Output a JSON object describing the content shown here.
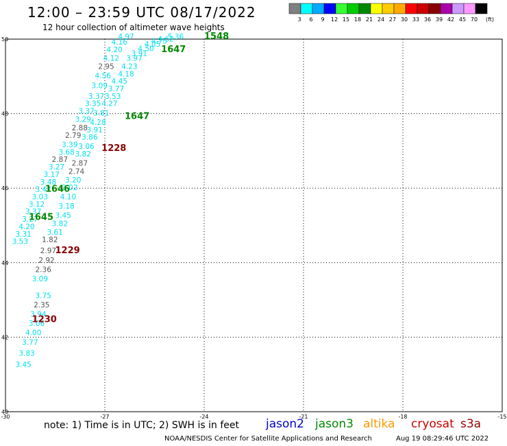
{
  "header": {
    "title": "12:00 – 23:59 UTC 08/17/2022",
    "subtitle": "12 hour collection of altimeter wave heights"
  },
  "colorbar": {
    "colors": [
      "#808080",
      "#00ffff",
      "#00aaff",
      "#0000ff",
      "#33ff33",
      "#00cc00",
      "#008800",
      "#ffff00",
      "#ffcc00",
      "#ffaa00",
      "#ff0000",
      "#cc0000",
      "#880000",
      "#aa00aa",
      "#cc99ff",
      "#ff99ff",
      "#000000"
    ],
    "labels": [
      "3",
      "6",
      "9",
      "12",
      "15",
      "18",
      "21",
      "24",
      "27",
      "30",
      "33",
      "36",
      "39",
      "42",
      "45",
      "70",
      "(ft)"
    ]
  },
  "footer": {
    "note": "note:  1) Time is in UTC;  2) SWH is in feet",
    "credit": "NOAA/NESDIS Center for Satellite Applications and Research",
    "date": "Aug 19 08:29:46 UTC 2022",
    "satellites": [
      {
        "name": "jason2",
        "color": "#0000cc"
      },
      {
        "name": "jason3",
        "color": "#008800"
      },
      {
        "name": "altika",
        "color": "#ff9900"
      },
      {
        "name": "cryosat",
        "color": "#cc0000"
      },
      {
        "name": "s3a",
        "color": "#990000"
      }
    ]
  },
  "chart_data": {
    "type": "scatter",
    "title": "12:00 – 23:59 UTC 08/17/2022",
    "subtitle": "12 hour collection of altimeter wave heights",
    "xlabel": "",
    "ylabel": "",
    "xlim": [
      -30,
      -15
    ],
    "ylim": [
      40,
      50
    ],
    "grid": true,
    "x_ticks": [
      -30,
      -27,
      -24,
      -21,
      -18,
      -15
    ],
    "x_tick_labels": [
      "-30",
      "-27",
      "-24",
      "-21",
      "-18",
      "-15"
    ],
    "y_ticks": [
      40,
      42,
      44,
      46,
      48,
      50
    ],
    "y_tick_labels": [
      "40",
      "42",
      "44",
      "46",
      "48",
      "50"
    ],
    "colors": {
      "cyan": "#00e0ee",
      "gray": "#555555",
      "green": "#008800",
      "darkred": "#880000"
    },
    "points": [
      {
        "x": -29.7,
        "y": 41.2,
        "label": "3.45",
        "color": "cyan"
      },
      {
        "x": -29.6,
        "y": 41.5,
        "label": "3.83",
        "color": "cyan"
      },
      {
        "x": -29.5,
        "y": 41.8,
        "label": "3.77",
        "color": "cyan"
      },
      {
        "x": -29.4,
        "y": 42.05,
        "label": "4.00",
        "color": "cyan"
      },
      {
        "x": -29.3,
        "y": 42.3,
        "label": "3.06",
        "color": "cyan"
      },
      {
        "x": -29.25,
        "y": 42.55,
        "label": "3.94",
        "color": "cyan"
      },
      {
        "x": -29.15,
        "y": 42.8,
        "label": "2.35",
        "color": "gray"
      },
      {
        "x": -29.1,
        "y": 43.05,
        "label": "3.75",
        "color": "cyan"
      },
      {
        "x": -29.2,
        "y": 43.5,
        "label": "3.09",
        "color": "cyan"
      },
      {
        "x": -29.1,
        "y": 43.75,
        "label": "2.36",
        "color": "gray"
      },
      {
        "x": -29.0,
        "y": 44.0,
        "label": "2.92",
        "color": "gray"
      },
      {
        "x": -28.95,
        "y": 44.25,
        "label": "2.97",
        "color": "gray"
      },
      {
        "x": -28.9,
        "y": 44.55,
        "label": "1.82",
        "color": "gray"
      },
      {
        "x": -28.75,
        "y": 44.75,
        "label": "3.61",
        "color": "cyan"
      },
      {
        "x": -28.6,
        "y": 44.98,
        "label": "3.82",
        "color": "cyan"
      },
      {
        "x": -28.5,
        "y": 45.2,
        "label": "3.45",
        "color": "cyan"
      },
      {
        "x": -28.4,
        "y": 45.45,
        "label": "3.18",
        "color": "cyan"
      },
      {
        "x": -28.35,
        "y": 45.7,
        "label": "4.10",
        "color": "cyan"
      },
      {
        "x": -28.3,
        "y": 45.95,
        "label": "3.02",
        "color": "cyan"
      },
      {
        "x": -28.2,
        "y": 46.15,
        "label": "3.20",
        "color": "cyan"
      },
      {
        "x": -28.1,
        "y": 46.38,
        "label": "2.74",
        "color": "gray"
      },
      {
        "x": -28.0,
        "y": 46.6,
        "label": "2.87",
        "color": "gray"
      },
      {
        "x": -27.9,
        "y": 46.85,
        "label": "3.82",
        "color": "cyan"
      },
      {
        "x": -27.8,
        "y": 47.05,
        "label": "3.06",
        "color": "cyan"
      },
      {
        "x": -27.7,
        "y": 47.3,
        "label": "3.86",
        "color": "cyan"
      },
      {
        "x": -27.55,
        "y": 47.5,
        "label": "3.91",
        "color": "cyan"
      },
      {
        "x": -27.45,
        "y": 47.7,
        "label": "4.28",
        "color": "cyan"
      },
      {
        "x": -27.35,
        "y": 47.95,
        "label": "3.81",
        "color": "cyan"
      },
      {
        "x": -27.1,
        "y": 48.2,
        "label": "4.27",
        "color": "cyan"
      },
      {
        "x": -27.0,
        "y": 48.4,
        "label": "3.53",
        "color": "cyan"
      },
      {
        "x": -26.9,
        "y": 48.6,
        "label": "3.77",
        "color": "cyan"
      },
      {
        "x": -26.8,
        "y": 48.8,
        "label": "4.45",
        "color": "cyan"
      },
      {
        "x": -26.6,
        "y": 49.0,
        "label": "4.18",
        "color": "cyan"
      },
      {
        "x": -26.5,
        "y": 49.2,
        "label": "4.23",
        "color": "cyan"
      },
      {
        "x": -26.35,
        "y": 49.42,
        "label": "3.97",
        "color": "cyan"
      },
      {
        "x": -26.2,
        "y": 49.55,
        "label": "3.91",
        "color": "cyan"
      },
      {
        "x": -26.0,
        "y": 49.68,
        "label": "4.50",
        "color": "cyan"
      },
      {
        "x": -25.8,
        "y": 49.8,
        "label": "4.05",
        "color": "cyan"
      },
      {
        "x": -25.6,
        "y": 49.88,
        "label": "4.75",
        "color": "cyan"
      },
      {
        "x": -25.4,
        "y": 49.94,
        "label": "4.62",
        "color": "cyan"
      },
      {
        "x": -25.1,
        "y": 50.0,
        "label": "5.36",
        "color": "cyan"
      },
      {
        "x": -29.8,
        "y": 44.5,
        "label": "3.53",
        "color": "cyan"
      },
      {
        "x": -29.7,
        "y": 44.7,
        "label": "3.31",
        "color": "cyan"
      },
      {
        "x": -29.6,
        "y": 44.9,
        "label": "4.20",
        "color": "cyan"
      },
      {
        "x": -29.5,
        "y": 45.1,
        "label": "3.27",
        "color": "cyan"
      },
      {
        "x": -29.4,
        "y": 45.3,
        "label": "3.37",
        "color": "cyan"
      },
      {
        "x": -29.3,
        "y": 45.5,
        "label": "3.12",
        "color": "cyan"
      },
      {
        "x": -29.2,
        "y": 45.7,
        "label": "3.03",
        "color": "cyan"
      },
      {
        "x": -29.1,
        "y": 45.9,
        "label": "3.47",
        "color": "cyan"
      },
      {
        "x": -28.95,
        "y": 46.1,
        "label": "3.48",
        "color": "cyan"
      },
      {
        "x": -28.85,
        "y": 46.3,
        "label": "3.17",
        "color": "cyan"
      },
      {
        "x": -28.7,
        "y": 46.5,
        "label": "3.27",
        "color": "cyan"
      },
      {
        "x": -28.6,
        "y": 46.7,
        "label": "2.87",
        "color": "gray"
      },
      {
        "x": -28.4,
        "y": 46.9,
        "label": "3.68",
        "color": "cyan"
      },
      {
        "x": -28.3,
        "y": 47.1,
        "label": "3.39",
        "color": "cyan"
      },
      {
        "x": -28.2,
        "y": 47.35,
        "label": "2.79",
        "color": "gray"
      },
      {
        "x": -28.0,
        "y": 47.55,
        "label": "2.88",
        "color": "gray"
      },
      {
        "x": -27.9,
        "y": 47.78,
        "label": "3.29",
        "color": "cyan"
      },
      {
        "x": -27.8,
        "y": 48.0,
        "label": "3.37",
        "color": "cyan"
      },
      {
        "x": -27.6,
        "y": 48.2,
        "label": "3.35",
        "color": "cyan"
      },
      {
        "x": -27.5,
        "y": 48.4,
        "label": "3.37",
        "color": "cyan"
      },
      {
        "x": -27.4,
        "y": 48.68,
        "label": "3.09",
        "color": "cyan"
      },
      {
        "x": -27.3,
        "y": 48.95,
        "label": "4.56",
        "color": "cyan"
      },
      {
        "x": -27.2,
        "y": 49.2,
        "label": "2.95",
        "color": "gray"
      },
      {
        "x": -27.05,
        "y": 49.42,
        "label": "4.12",
        "color": "cyan"
      },
      {
        "x": -26.95,
        "y": 49.65,
        "label": "4.20",
        "color": "cyan"
      },
      {
        "x": -26.8,
        "y": 49.85,
        "label": "4.16",
        "color": "cyan"
      },
      {
        "x": -26.6,
        "y": 50.0,
        "label": "4.97",
        "color": "cyan"
      }
    ],
    "annotations": [
      {
        "x": -24.0,
        "y": 50.0,
        "label": "1548",
        "color": "green"
      },
      {
        "x": -25.3,
        "y": 49.65,
        "label": "1647",
        "color": "green"
      },
      {
        "x": -26.4,
        "y": 47.85,
        "label": "1647",
        "color": "green"
      },
      {
        "x": -27.1,
        "y": 47.0,
        "label": "1228",
        "color": "darkred"
      },
      {
        "x": -28.8,
        "y": 45.9,
        "label": "1646",
        "color": "green"
      },
      {
        "x": -29.3,
        "y": 45.15,
        "label": "1645",
        "color": "green"
      },
      {
        "x": -28.5,
        "y": 44.25,
        "label": "1229",
        "color": "darkred"
      },
      {
        "x": -29.2,
        "y": 42.4,
        "label": "1230",
        "color": "darkred"
      }
    ]
  }
}
